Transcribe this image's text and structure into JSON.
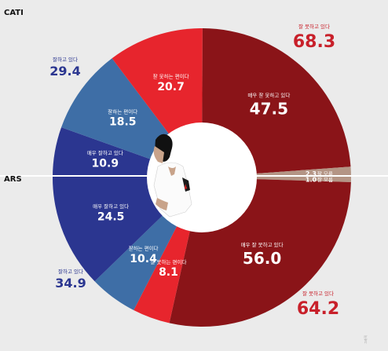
{
  "chart_data": {
    "type": "pie",
    "panels": [
      {
        "method": "CATI",
        "segments": [
          {
            "label": "매우 잘 못하고 있다",
            "value": 47.5,
            "color": "#8a1418"
          },
          {
            "label": "잘 모름",
            "value": 2.3,
            "color": "#b49585"
          },
          {
            "label": "매우 잘하고 있다",
            "value": 10.9,
            "color": "#2b3690"
          },
          {
            "label": "잘하는 편이다",
            "value": 18.5,
            "color": "#3e6ea6"
          },
          {
            "label": "잘 못하는 편이다",
            "value": 20.7,
            "color": "#e7252d"
          }
        ],
        "totals": [
          {
            "label": "잘 못하고 있다",
            "value": 68.3,
            "color": "#c8202a"
          },
          {
            "label": "잘하고 있다",
            "value": 29.4,
            "color": "#2b3690"
          }
        ]
      },
      {
        "method": "ARS",
        "segments": [
          {
            "label": "잘 모름",
            "value": 1.0,
            "color": "#b49585"
          },
          {
            "label": "매우 잘 못하고 있다",
            "value": 56.0,
            "color": "#8a1418"
          },
          {
            "label": "잘 못하는 편이다",
            "value": 8.1,
            "color": "#e7252d"
          },
          {
            "label": "잘하는 편이다",
            "value": 10.4,
            "color": "#3e6ea6"
          },
          {
            "label": "매우 잘하고 있다",
            "value": 24.5,
            "color": "#2b3690"
          }
        ],
        "totals": [
          {
            "label": "잘 못하고 있다",
            "value": 64.2,
            "color": "#c8202a"
          },
          {
            "label": "잘하고 있다",
            "value": 34.9,
            "color": "#2b3690"
          }
        ]
      }
    ]
  }
}
